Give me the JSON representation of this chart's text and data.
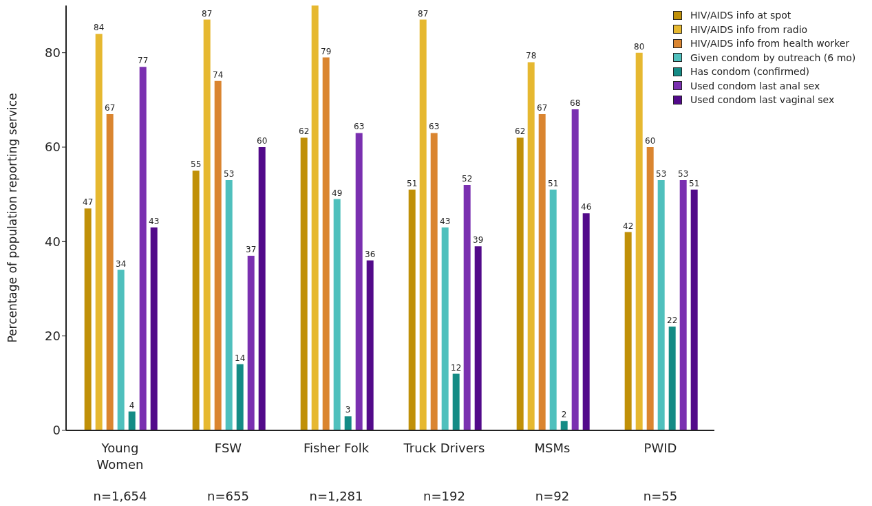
{
  "chart_data": {
    "type": "bar",
    "ylabel": "Percentage of population reporting service",
    "categories": [
      "Young Women",
      "FSW",
      "Fisher Folk",
      "Truck Drivers",
      "MSMs",
      "PWID"
    ],
    "series": [
      {
        "name": "HIV/AIDS info at spot",
        "color": "#c09008",
        "values": [
          47,
          55,
          62,
          51,
          62,
          42
        ]
      },
      {
        "name": "HIV/AIDS info from radio",
        "color": "#e6b830",
        "values": [
          84,
          87,
          90,
          87,
          78,
          80
        ],
        "value_labels": [
          "84",
          "87",
          null,
          "87",
          "78",
          "80"
        ]
      },
      {
        "name": "HIV/AIDS info from health worker",
        "color": "#da8530",
        "values": [
          67,
          74,
          79,
          63,
          67,
          60
        ]
      },
      {
        "name": "Given condom by outreach (6 mo)",
        "color": "#4fc0bd",
        "values": [
          34,
          53,
          49,
          43,
          51,
          53
        ]
      },
      {
        "name": "Has condom (confirmed)",
        "color": "#148b85",
        "values": [
          4,
          14,
          3,
          12,
          2,
          22
        ]
      },
      {
        "name": "Used condom last anal sex",
        "color": "#7a30b0",
        "values": [
          77,
          37,
          63,
          52,
          68,
          53
        ]
      },
      {
        "name": "Used condom last vaginal sex",
        "color": "#520a8a",
        "values": [
          43,
          60,
          36,
          39,
          46,
          51
        ]
      }
    ],
    "ylim": [
      0,
      90
    ],
    "yticks": [
      0,
      20,
      40,
      60,
      80
    ],
    "annotations": [
      "n=1,654",
      "n=655",
      "n=1,281",
      "n=192",
      "n=92",
      "n=55"
    ],
    "data_labels": true,
    "grid": false,
    "legend": "top right"
  }
}
